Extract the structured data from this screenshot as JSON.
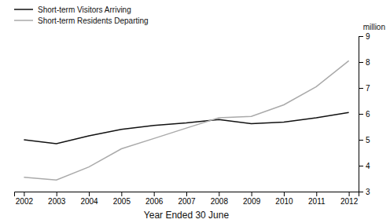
{
  "chart_data": {
    "type": "line",
    "x": [
      2002,
      2003,
      2004,
      2005,
      2006,
      2007,
      2008,
      2009,
      2010,
      2011,
      2012
    ],
    "series": [
      {
        "name": "Short-term Visitors Arriving",
        "color": "#111111",
        "values": [
          5.0,
          4.85,
          5.15,
          5.4,
          5.55,
          5.65,
          5.78,
          5.62,
          5.68,
          5.85,
          6.05
        ]
      },
      {
        "name": "Short-term Residents Departing",
        "color": "#aaaaaa",
        "values": [
          3.55,
          3.45,
          3.95,
          4.65,
          5.05,
          5.45,
          5.85,
          5.9,
          6.35,
          7.05,
          8.05
        ]
      }
    ],
    "xlabel": "Year Ended 30 June",
    "ylabel": "million",
    "xlim": [
      2001.7,
      2012.3
    ],
    "xticks": [
      2002,
      2003,
      2004,
      2005,
      2006,
      2007,
      2008,
      2009,
      2010,
      2011,
      2012
    ],
    "ylim": [
      3,
      9
    ],
    "yticks": [
      3,
      4,
      5,
      6,
      7,
      8,
      9
    ],
    "grid": false,
    "legend": "top"
  }
}
